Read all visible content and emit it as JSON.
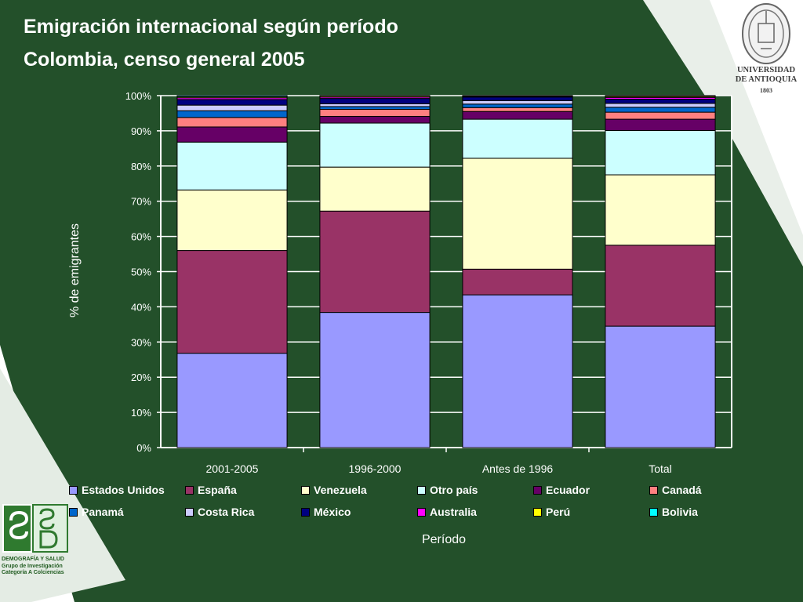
{
  "header": {
    "title_line1": "Emigración internacional según período",
    "title_line2": "Colombia, censo general 2005"
  },
  "logos": {
    "udea": {
      "line1": "UNIVERSIDAD",
      "line2": "DE ANTIOQUIA",
      "year": "1803"
    },
    "sd": {
      "line1": "DEMOGRAFÍA Y SALUD",
      "line2": "Grupo de Investigación",
      "line3": "Categoría A Colciencias"
    }
  },
  "colors": {
    "background": "#23502a",
    "plot_area": "#23502a",
    "gridline": "#ffffff"
  },
  "chart_data": {
    "type": "bar",
    "stacked": true,
    "percent": true,
    "title": "",
    "xlabel": "Período",
    "ylabel": "% de emigrantes",
    "ylim": [
      0,
      100
    ],
    "yticks": [
      "0%",
      "10%",
      "20%",
      "30%",
      "40%",
      "50%",
      "60%",
      "70%",
      "80%",
      "90%",
      "100%"
    ],
    "grid": true,
    "legend_position": "bottom",
    "categories": [
      "2001-2005",
      "1996-2000",
      "Antes de 1996",
      "Total"
    ],
    "series": [
      {
        "name": "Estados Unidos",
        "color": "#9999ff",
        "values": [
          26.8,
          38.4,
          43.4,
          34.5
        ]
      },
      {
        "name": "España",
        "color": "#993366",
        "values": [
          29.2,
          28.8,
          7.3,
          23.0
        ]
      },
      {
        "name": "Venezuela",
        "color": "#ffffcc",
        "values": [
          17.2,
          12.5,
          31.5,
          20.0
        ]
      },
      {
        "name": "Otro país",
        "color": "#ccffff",
        "values": [
          13.6,
          12.5,
          11.1,
          12.6
        ]
      },
      {
        "name": "Ecuador",
        "color": "#660066",
        "values": [
          4.3,
          1.9,
          2.2,
          3.2
        ]
      },
      {
        "name": "Canadá",
        "color": "#ff8080",
        "values": [
          2.7,
          2.0,
          1.1,
          2.0
        ]
      },
      {
        "name": "Panamá",
        "color": "#0066cc",
        "values": [
          1.9,
          0.8,
          1.0,
          1.4
        ]
      },
      {
        "name": "Costa Rica",
        "color": "#ccccff",
        "values": [
          1.6,
          0.8,
          1.0,
          1.1
        ]
      },
      {
        "name": "México",
        "color": "#000080",
        "values": [
          1.6,
          1.5,
          1.0,
          1.2
        ]
      },
      {
        "name": "Australia",
        "color": "#ff00ff",
        "values": [
          0.5,
          0.4,
          0.2,
          0.5
        ]
      },
      {
        "name": "Perú",
        "color": "#ffff00",
        "values": [
          0.3,
          0.3,
          0.1,
          0.3
        ]
      },
      {
        "name": "Bolivia",
        "color": "#00ffff",
        "values": [
          0.3,
          0.1,
          0.1,
          0.2
        ]
      }
    ]
  }
}
